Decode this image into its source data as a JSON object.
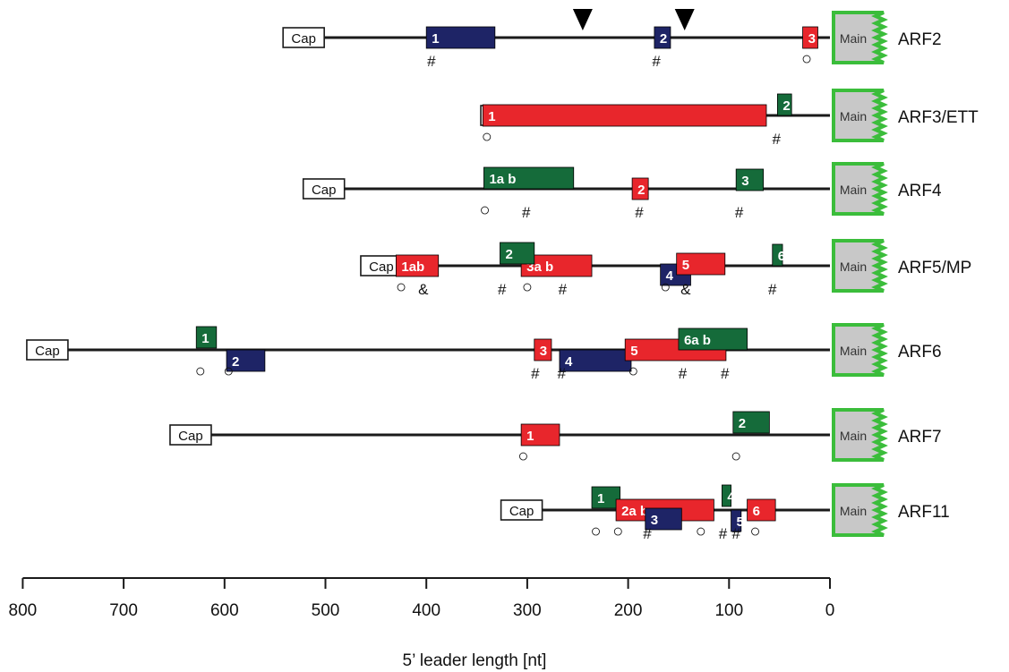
{
  "colors": {
    "red": "#e8262c",
    "green": "#156b3a",
    "blue": "#1e2466",
    "line": "#1a1a1a",
    "main_fill": "#c8c8c8",
    "main_border": "#3bbd3b"
  },
  "cap_label": "Cap",
  "main_label": "Main",
  "marks": {
    "hash": "#",
    "amp": "&"
  },
  "axis": {
    "ticks": [
      "800",
      "700",
      "600",
      "500",
      "400",
      "300",
      "200",
      "100",
      "0"
    ],
    "label": "5’ leader length [nt]"
  },
  "arfs": [
    {
      "name": "ARF2",
      "uorfs": [
        {
          "label": "1",
          "color": "blue",
          "start": 400,
          "end": 332
        },
        {
          "label": "2",
          "color": "blue",
          "start": 174,
          "end": 158
        },
        {
          "label": "3",
          "color": "red",
          "start": 27,
          "end": 12
        }
      ],
      "annotations": [
        {
          "text": "#",
          "pos": 395
        },
        {
          "text": "#",
          "pos": 172
        },
        {
          "text": "○",
          "pos": 23
        }
      ],
      "arrows": [
        245,
        144
      ]
    },
    {
      "name": "ARF3/ETT",
      "uorfs": [
        {
          "label": "1",
          "color": "red",
          "start": 344,
          "end": 63
        },
        {
          "label": "2",
          "color": "green",
          "start": 52,
          "end": 38
        }
      ],
      "annotations": [
        {
          "text": "○",
          "pos": 340
        },
        {
          "text": "#",
          "pos": 53
        }
      ]
    },
    {
      "name": "ARF4",
      "uorfs": [
        {
          "label": "1a  b",
          "color": "green",
          "start": 343,
          "end": 254
        },
        {
          "label": "2",
          "color": "red",
          "start": 196,
          "end": 180
        },
        {
          "label": "3",
          "color": "green",
          "start": 93,
          "end": 66
        }
      ],
      "annotations": [
        {
          "text": "○",
          "pos": 342
        },
        {
          "text": "#",
          "pos": 301
        },
        {
          "text": "#",
          "pos": 189
        },
        {
          "text": "#",
          "pos": 90
        }
      ]
    },
    {
      "name": "ARF5/MP",
      "uorfs": [
        {
          "label": "1ab",
          "color": "red",
          "start": 430,
          "end": 388
        },
        {
          "label": "3a b",
          "color": "red",
          "start": 306,
          "end": 236
        },
        {
          "label": "2",
          "color": "green",
          "start": 327,
          "end": 293
        },
        {
          "label": "4",
          "color": "blue",
          "start": 168,
          "end": 138
        },
        {
          "label": "5",
          "color": "red",
          "start": 152,
          "end": 104
        },
        {
          "label": "6",
          "color": "green",
          "start": 57,
          "end": 47
        }
      ],
      "annotations": [
        {
          "text": "○",
          "pos": 425
        },
        {
          "text": "&",
          "pos": 403
        },
        {
          "text": "#",
          "pos": 325
        },
        {
          "text": "○",
          "pos": 300
        },
        {
          "text": "#",
          "pos": 265
        },
        {
          "text": "○",
          "pos": 163
        },
        {
          "text": "&",
          "pos": 143
        },
        {
          "text": "#",
          "pos": 57
        }
      ]
    },
    {
      "name": "ARF6",
      "uorfs": [
        {
          "label": "1",
          "color": "green",
          "start": 628,
          "end": 608
        },
        {
          "label": "2",
          "color": "blue",
          "start": 598,
          "end": 560
        },
        {
          "label": "3",
          "color": "red",
          "start": 293,
          "end": 276
        },
        {
          "label": "4",
          "color": "blue",
          "start": 268,
          "end": 197
        },
        {
          "label": "5",
          "color": "red",
          "start": 203,
          "end": 103
        },
        {
          "label": "6a  b",
          "color": "green",
          "start": 150,
          "end": 82
        }
      ],
      "annotations": [
        {
          "text": "○",
          "pos": 624
        },
        {
          "text": "○",
          "pos": 596
        },
        {
          "text": "#",
          "pos": 292
        },
        {
          "text": "#",
          "pos": 266
        },
        {
          "text": "○",
          "pos": 195
        },
        {
          "text": "#",
          "pos": 146
        },
        {
          "text": "#",
          "pos": 104
        }
      ]
    },
    {
      "name": "ARF7",
      "uorfs": [
        {
          "label": "1",
          "color": "red",
          "start": 306,
          "end": 268
        },
        {
          "label": "2",
          "color": "green",
          "start": 96,
          "end": 60
        }
      ],
      "annotations": [
        {
          "text": "○",
          "pos": 304
        },
        {
          "text": "○",
          "pos": 93
        }
      ]
    },
    {
      "name": "ARF11",
      "uorfs": [
        {
          "label": "1",
          "color": "green",
          "start": 236,
          "end": 208
        },
        {
          "label": "2a            b",
          "color": "red",
          "start": 212,
          "end": 115
        },
        {
          "label": "3",
          "color": "blue",
          "start": 183,
          "end": 147
        },
        {
          "label": "4",
          "color": "green",
          "start": 107,
          "end": 98
        },
        {
          "label": "5",
          "color": "blue",
          "start": 98,
          "end": 88
        },
        {
          "label": "6",
          "color": "red",
          "start": 82,
          "end": 54
        }
      ],
      "annotations": [
        {
          "text": "○",
          "pos": 232
        },
        {
          "text": "○",
          "pos": 210
        },
        {
          "text": "#",
          "pos": 181
        },
        {
          "text": "○",
          "pos": 128
        },
        {
          "text": "#",
          "pos": 106
        },
        {
          "text": "#",
          "pos": 93
        },
        {
          "text": "○",
          "pos": 74
        }
      ]
    }
  ],
  "cap_positions": [
    542,
    346,
    522,
    465,
    796,
    654,
    326
  ]
}
